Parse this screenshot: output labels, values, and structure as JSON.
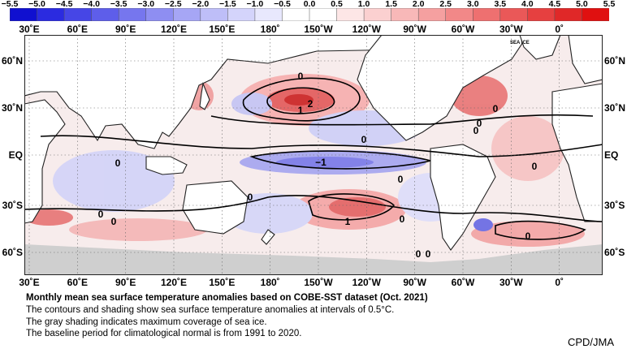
{
  "colorbar": {
    "ticks": [
      "−5.5",
      "−5.0",
      "−4.5",
      "−4.0",
      "−3.5",
      "−3.0",
      "−2.5",
      "−2.0",
      "−1.5",
      "−1.0",
      "−0.5",
      "0.0",
      "0.5",
      "1.0",
      "1.5",
      "2.0",
      "2.5",
      "3.0",
      "3.5",
      "4.0",
      "4.5",
      "5.0",
      "5.5"
    ],
    "colors": [
      "#1010d0",
      "#2b2be0",
      "#4646e6",
      "#5e5eea",
      "#7676ee",
      "#8e8ef2",
      "#a6a6f5",
      "#bebef8",
      "#d4d4fb",
      "#e8e8fd",
      "#ffffff",
      "#ffffff",
      "#fde6e6",
      "#fbd0d0",
      "#f8b8b8",
      "#f5a0a0",
      "#f28888",
      "#ee7070",
      "#ea5858",
      "#e64040",
      "#e02828",
      "#e01010"
    ]
  },
  "map": {
    "lon_labels": [
      "30˚E",
      "60˚E",
      "90˚E",
      "120˚E",
      "150˚E",
      "180˚",
      "150˚W",
      "120˚W",
      "90˚W",
      "60˚W",
      "30˚W",
      "0˚"
    ],
    "lat_labels_left": [
      "60˚N",
      "30˚N",
      "EQ",
      "30˚S",
      "60˚S"
    ],
    "lat_labels_right": [
      "60˚N",
      "30˚N",
      "EQ",
      "30˚S",
      "60˚S"
    ],
    "sea_ice_label": "SEA ICE",
    "contour_labels": [
      "0",
      "2",
      "1",
      "0",
      "0",
      "0",
      "0",
      "−1",
      "0",
      "0",
      "0",
      "0",
      "1",
      "0",
      "0",
      "0",
      "0",
      "0",
      "0"
    ],
    "colors": {
      "land": "#ffffff",
      "sea_ice": "#cfcfcf",
      "warm": "#f0a0a0",
      "cool": "#b0b0f0",
      "grid": "#777777"
    }
  },
  "caption": {
    "title": "Monthly mean sea surface temperature anomalies based on COBE-SST dataset (Oct. 2021)",
    "line1": "The contours and shading show sea surface temperature anomalies at intervals of 0.5°C.",
    "line2": "The gray shading indicates maximum coverage of sea ice.",
    "line3": "The baseline period for climatological normal is from 1991 to 2020."
  },
  "credit": "CPD/JMA"
}
